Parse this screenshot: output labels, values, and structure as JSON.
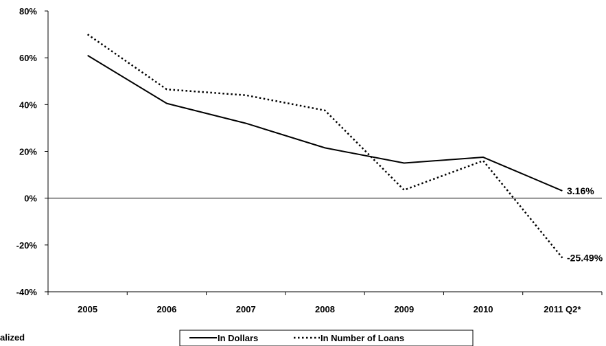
{
  "chart_data": {
    "type": "line",
    "title": "",
    "xlabel": "",
    "ylabel": "",
    "categories": [
      "2005",
      "2006",
      "2007",
      "2008",
      "2009",
      "2010",
      "2011 Q2*"
    ],
    "ylim": [
      -40,
      80
    ],
    "yticks": [
      -40,
      -20,
      0,
      20,
      40,
      60,
      80
    ],
    "ytick_labels": [
      "-40%",
      "-20%",
      "0%",
      "20%",
      "40%",
      "60%",
      "80%"
    ],
    "grid": false,
    "legend_position": "bottom-center",
    "series": [
      {
        "name": "In Dollars",
        "style": "solid",
        "color": "#000000",
        "values": [
          61,
          40.5,
          32,
          21.5,
          15,
          17.5,
          3.16
        ]
      },
      {
        "name": "In Number of Loans",
        "style": "dotted",
        "color": "#000000",
        "values": [
          70,
          46.5,
          44,
          37.5,
          3.5,
          16,
          -25.49
        ]
      }
    ],
    "annotations": [
      "3.16%",
      "-25.49%"
    ]
  },
  "footnote": "alized"
}
